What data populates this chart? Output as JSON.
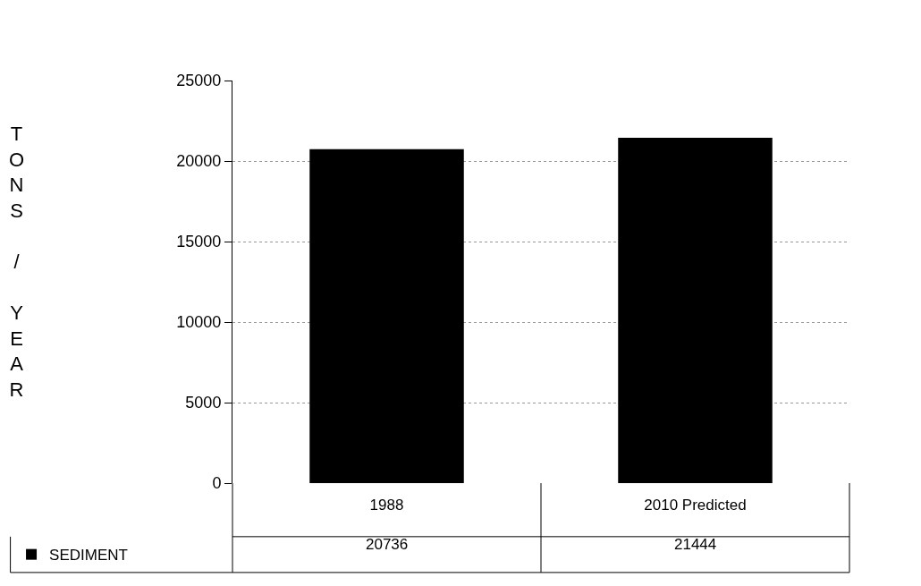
{
  "chart_data": {
    "type": "bar",
    "ylabel": "TONS / YEAR",
    "categories": [
      "1988",
      "2010 Predicted"
    ],
    "series": [
      {
        "name": "SEDIMENT",
        "color": "#000000",
        "values": [
          20736,
          21444
        ]
      }
    ],
    "ylim": [
      0,
      25000
    ],
    "yticks": [
      0,
      5000,
      10000,
      15000,
      20000,
      25000
    ],
    "grid": "y",
    "legend": "bottom left",
    "data_labels": true
  }
}
